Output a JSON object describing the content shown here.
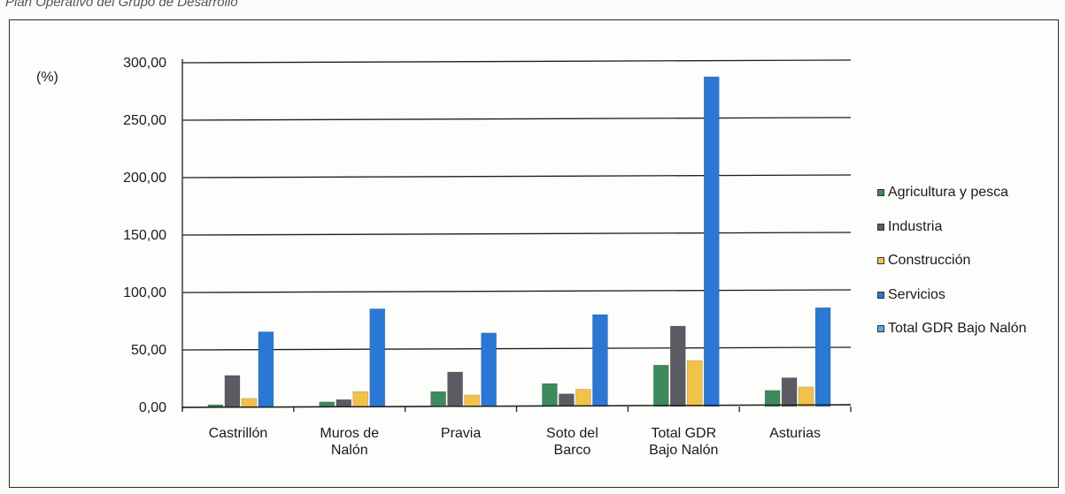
{
  "caption": "Plan Operativo del Grupo de Desarrollo",
  "chart_data": {
    "type": "bar",
    "ylabel": "(%)",
    "ylim": [
      0,
      300
    ],
    "yticks": [
      "0,00",
      "50,00",
      "100,00",
      "150,00",
      "200,00",
      "250,00",
      "300,00"
    ],
    "categories": [
      [
        "Castrillón"
      ],
      [
        "Muros de",
        "Nalón"
      ],
      [
        "Pravia"
      ],
      [
        "Soto del",
        "Barco"
      ],
      [
        "Total GDR",
        "Bajo Nalón"
      ],
      [
        "Asturias"
      ]
    ],
    "series": [
      {
        "name": "Agricultura y pesca",
        "color": "#3d8a5c",
        "values": [
          1.5,
          4,
          13,
          20,
          36,
          14
        ]
      },
      {
        "name": "Industria",
        "color": "#5b5b63",
        "values": [
          27,
          6,
          30,
          11,
          70,
          25
        ]
      },
      {
        "name": "Construcción",
        "color": "#f2c14a",
        "values": [
          7,
          13,
          10,
          15,
          40,
          17
        ]
      },
      {
        "name": "Servicios",
        "color": "#2a78d4",
        "values": [
          65,
          85,
          64,
          80,
          287,
          86
        ]
      },
      {
        "name": "Total GDR Bajo Nalón",
        "color": "#5aa9e8",
        "values": [
          null,
          null,
          null,
          null,
          null,
          null
        ]
      }
    ],
    "grid": true,
    "legend": "right"
  }
}
